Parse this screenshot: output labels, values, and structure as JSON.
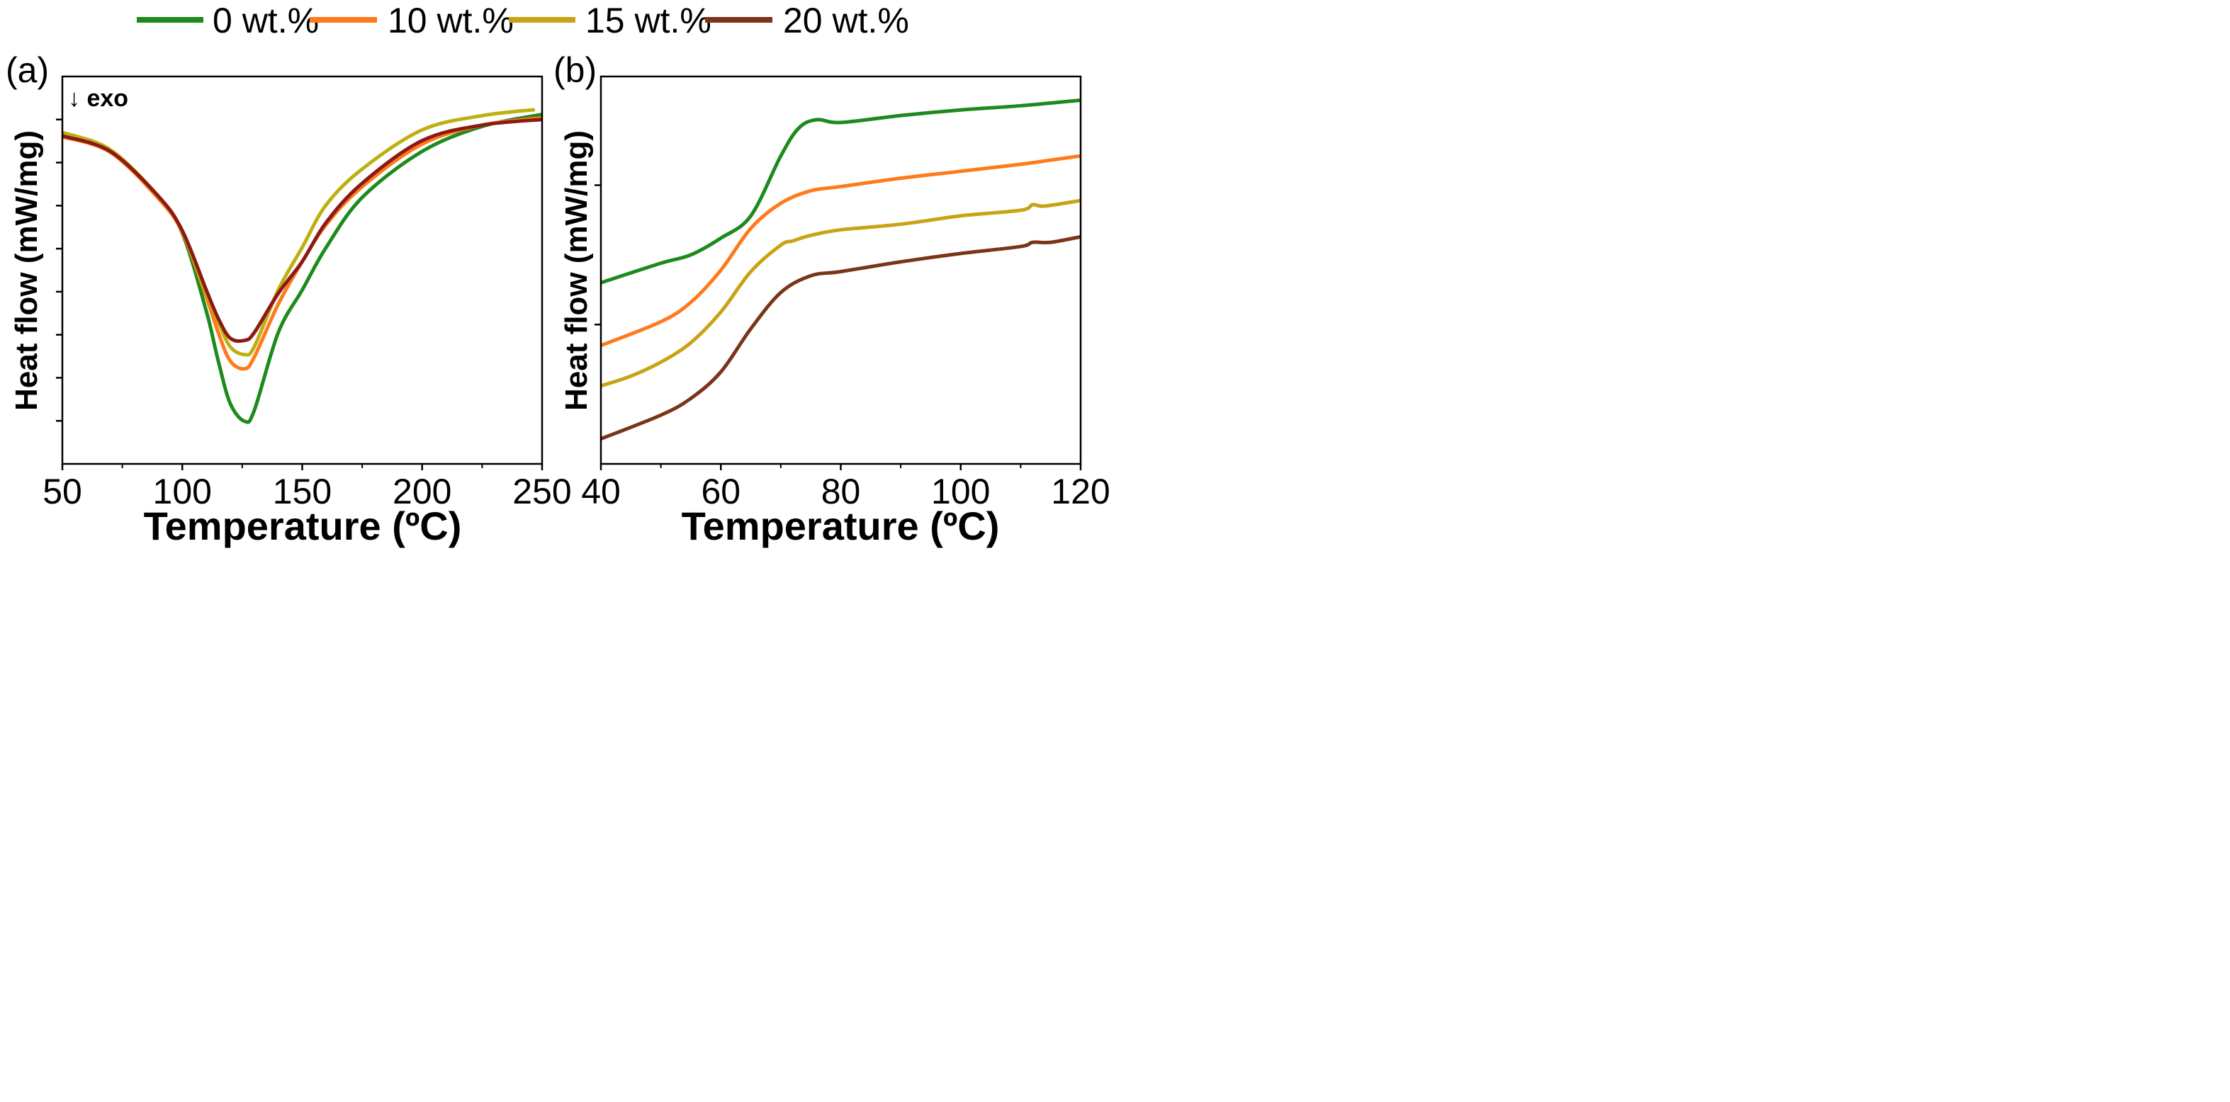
{
  "legend": [
    {
      "label": "0 wt.%",
      "color": "#1c8a1c"
    },
    {
      "label": "10 wt.%",
      "color": "#ff7a1a"
    },
    {
      "label": "15 wt.%",
      "color": "#c9a316"
    },
    {
      "label": "20 wt.%",
      "color": "#7a3518"
    }
  ],
  "chart_data": [
    {
      "panel_label": "(a)",
      "type": "line",
      "annotation": "↓ exo",
      "xlabel": "Temperature (ºC)",
      "ylabel": "Heat flow (mW/mg)",
      "xlim": [
        50,
        250
      ],
      "ylim": [
        0,
        9
      ],
      "xticks": [
        50,
        100,
        150,
        200,
        250
      ],
      "xminor": [
        75,
        125,
        175,
        225
      ],
      "yticks_unlabeled": [
        1,
        2,
        3,
        4,
        5,
        6,
        7,
        8
      ],
      "grid": false,
      "series": [
        {
          "name": "0 wt.%",
          "color": "#1c8a1c",
          "x": [
            50,
            70,
            90,
            100,
            110,
            115,
            120,
            126,
            130,
            140,
            150,
            160,
            175,
            200,
            225,
            250
          ],
          "y": [
            7.62,
            7.26,
            6.19,
            5.36,
            3.55,
            2.39,
            1.4,
            0.99,
            1.24,
            3.05,
            4.04,
            5.03,
            6.19,
            7.26,
            7.84,
            8.12
          ]
        },
        {
          "name": "10 wt.%",
          "color": "#ff7a1a",
          "x": [
            50,
            70,
            90,
            100,
            110,
            115,
            120,
            126,
            130,
            140,
            150,
            160,
            175,
            200,
            225,
            250
          ],
          "y": [
            7.6,
            7.24,
            6.17,
            5.38,
            3.88,
            3.05,
            2.39,
            2.21,
            2.48,
            3.71,
            4.7,
            5.56,
            6.44,
            7.43,
            7.87,
            8.04
          ]
        },
        {
          "name": "15 wt.%",
          "color": "#bdb010",
          "x": [
            50,
            70,
            90,
            100,
            110,
            115,
            120,
            126,
            130,
            140,
            150,
            160,
            175,
            200,
            225,
            247
          ],
          "y": [
            7.7,
            7.3,
            6.22,
            5.4,
            3.96,
            3.3,
            2.72,
            2.54,
            2.72,
            4.04,
            5.03,
            6.02,
            6.85,
            7.76,
            8.09,
            8.23
          ]
        },
        {
          "name": "20 wt.%",
          "color": "#8b1a14",
          "x": [
            50,
            70,
            90,
            100,
            110,
            115,
            120,
            126,
            130,
            140,
            150,
            160,
            175,
            200,
            225,
            250
          ],
          "y": [
            7.62,
            7.26,
            6.22,
            5.42,
            4.04,
            3.38,
            2.92,
            2.87,
            3.05,
            3.96,
            4.7,
            5.61,
            6.52,
            7.51,
            7.87,
            8.0
          ]
        }
      ]
    },
    {
      "panel_label": "(b)",
      "type": "line",
      "xlabel": "Temperature (ºC)",
      "ylabel": "Heat flow (mW/mg)",
      "xlim": [
        40,
        120
      ],
      "ylim": [
        0,
        2.78
      ],
      "xticks": [
        40,
        60,
        80,
        100,
        120
      ],
      "xminor": [
        50,
        70,
        90,
        110
      ],
      "yticks_unlabeled": [
        1,
        2
      ],
      "grid": false,
      "series": [
        {
          "name": "0 wt.%",
          "color": "#1c8a1c",
          "x": [
            40,
            50,
            55,
            60,
            65,
            70,
            73,
            76,
            80,
            90,
            100,
            110,
            120
          ],
          "y": [
            1.3,
            1.44,
            1.5,
            1.62,
            1.78,
            2.21,
            2.41,
            2.47,
            2.45,
            2.5,
            2.54,
            2.57,
            2.61
          ]
        },
        {
          "name": "10 wt.%",
          "color": "#ff7a1a",
          "x": [
            40,
            50,
            55,
            60,
            65,
            70,
            75,
            80,
            90,
            100,
            110,
            115,
            120
          ],
          "y": [
            0.85,
            1.02,
            1.16,
            1.39,
            1.69,
            1.87,
            1.96,
            1.99,
            2.05,
            2.1,
            2.15,
            2.18,
            2.21
          ]
        },
        {
          "name": "15 wt.%",
          "color": "#c9a316",
          "x": [
            40,
            45,
            50,
            55,
            60,
            65,
            70,
            72,
            75,
            80,
            90,
            100,
            110,
            112,
            114,
            120
          ],
          "y": [
            0.56,
            0.63,
            0.73,
            0.87,
            1.09,
            1.38,
            1.57,
            1.6,
            1.64,
            1.68,
            1.72,
            1.78,
            1.82,
            1.86,
            1.85,
            1.89
          ]
        },
        {
          "name": "20 wt.%",
          "color": "#7a3518",
          "x": [
            40,
            50,
            55,
            60,
            65,
            70,
            75,
            80,
            90,
            100,
            110,
            112,
            115,
            120
          ],
          "y": [
            0.18,
            0.35,
            0.47,
            0.66,
            0.97,
            1.23,
            1.35,
            1.38,
            1.45,
            1.51,
            1.56,
            1.59,
            1.59,
            1.63
          ]
        }
      ]
    }
  ]
}
